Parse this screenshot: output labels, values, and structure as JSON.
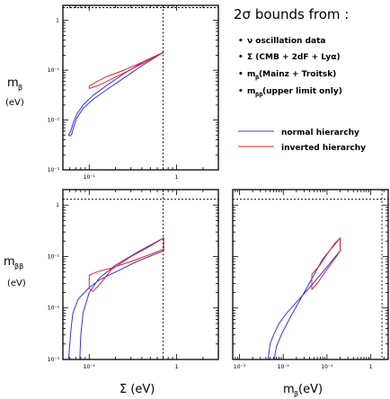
{
  "legend": {
    "title": "2σ bounds from :",
    "bullets": [
      "ν oscillation data",
      "Σ (CMB + 2dF + Lyα)",
      "m_β (Mainz + Troitsk)",
      "m_ββ (upper limit only)"
    ],
    "bullet_parts": [
      {
        "main": "ν oscillation data",
        "sub": ""
      },
      {
        "main": "Σ (CMB + 2dF + Lyα)",
        "sub": ""
      },
      {
        "main": "m",
        "sub": "β",
        "tail": " (Mainz + Troitsk)"
      },
      {
        "main": "m",
        "sub": "ββ",
        "tail": " (upper limit only)"
      }
    ]
  },
  "axis_labels": {
    "y_top": {
      "main": "m",
      "sub": "β",
      "unit": "(eV)"
    },
    "y_bottom": {
      "main": "m",
      "sub": "ββ",
      "unit": "(eV)"
    },
    "x_left": "Σ (eV)",
    "x_right": {
      "main": "m",
      "sub": "β",
      "unit": " (eV)"
    }
  },
  "colors": {
    "normal": "#3333ee",
    "inverted": "#ee2222",
    "frame": "#000000"
  },
  "chart_data": [
    {
      "type": "area",
      "panel": "m_beta vs Sigma",
      "x": {
        "label": "Σ (eV)",
        "scale": "log",
        "lim": [
          0.05,
          3
        ],
        "ticks": [
          0.1,
          1
        ],
        "tick_labels": [
          "10⁻¹",
          "1"
        ]
      },
      "y": {
        "label": "m_β (eV)",
        "scale": "log",
        "lim": [
          0.001,
          2
        ],
        "ticks": [
          0.001,
          0.01,
          0.1,
          1
        ],
        "tick_labels": [
          "10⁻³",
          "10⁻²",
          "10⁻¹",
          "1"
        ]
      },
      "limits": {
        "m_beta_upper": 1.8,
        "sigma_upper": 0.7
      },
      "series": [
        {
          "name": "normal hierarchy",
          "color": "#3333ee",
          "x": [
            0.058,
            0.061,
            0.063,
            0.066,
            0.072,
            0.085,
            0.11,
            0.16,
            0.25,
            0.42,
            0.71,
            0.71,
            0.42,
            0.25,
            0.16,
            0.11,
            0.085,
            0.072,
            0.066,
            0.063,
            0.061,
            0.058
          ],
          "y": [
            0.005,
            0.0048,
            0.0052,
            0.007,
            0.011,
            0.017,
            0.026,
            0.041,
            0.07,
            0.13,
            0.23,
            0.23,
            0.15,
            0.085,
            0.05,
            0.031,
            0.02,
            0.013,
            0.009,
            0.007,
            0.0058,
            0.005
          ]
        },
        {
          "name": "inverted hierarchy",
          "color": "#ee2222",
          "x": [
            0.1,
            0.11,
            0.13,
            0.16,
            0.25,
            0.42,
            0.71,
            0.71,
            0.42,
            0.25,
            0.16,
            0.12,
            0.1
          ],
          "y": [
            0.043,
            0.045,
            0.05,
            0.06,
            0.088,
            0.14,
            0.23,
            0.23,
            0.15,
            0.1,
            0.075,
            0.058,
            0.048
          ]
        }
      ]
    },
    {
      "type": "area",
      "panel": "m_betabeta vs Sigma",
      "x": {
        "label": "Σ (eV)",
        "scale": "log",
        "lim": [
          0.05,
          3
        ],
        "ticks": [
          0.1,
          1
        ],
        "tick_labels": [
          "10⁻¹",
          "1"
        ]
      },
      "y": {
        "label": "m_ββ (eV)",
        "scale": "log",
        "lim": [
          0.001,
          2
        ],
        "ticks": [
          0.001,
          0.01,
          0.1,
          1
        ],
        "tick_labels": [
          "10⁻³",
          "10⁻²",
          "10⁻¹",
          "1"
        ]
      },
      "limits": {
        "m_betabeta_upper": 1.3,
        "sigma_upper": 0.7
      },
      "series": [
        {
          "name": "normal hierarchy",
          "color": "#3333ee",
          "x": [
            0.058,
            0.06,
            0.062,
            0.065,
            0.075,
            0.1,
            0.13,
            0.2,
            0.35,
            0.71,
            0.71,
            0.35,
            0.2,
            0.13,
            0.1,
            0.085,
            0.08,
            0.078
          ],
          "y": [
            0.001,
            0.002,
            0.004,
            0.008,
            0.015,
            0.025,
            0.035,
            0.05,
            0.08,
            0.13,
            0.23,
            0.12,
            0.068,
            0.038,
            0.02,
            0.008,
            0.003,
            0.001
          ]
        },
        {
          "name": "inverted hierarchy",
          "color": "#ee2222",
          "x": [
            0.1,
            0.11,
            0.13,
            0.18,
            0.3,
            0.5,
            0.71,
            0.71,
            0.5,
            0.3,
            0.18,
            0.13,
            0.11,
            0.1
          ],
          "y": [
            0.043,
            0.047,
            0.052,
            0.06,
            0.08,
            0.11,
            0.14,
            0.23,
            0.16,
            0.1,
            0.056,
            0.028,
            0.021,
            0.024
          ]
        }
      ]
    },
    {
      "type": "area",
      "panel": "m_betabeta vs m_beta",
      "x": {
        "label": "m_β (eV)",
        "scale": "log",
        "lim": [
          0.0007,
          2.5
        ],
        "ticks": [
          0.001,
          0.01,
          0.1,
          1
        ],
        "tick_labels": [
          "10⁻³",
          "10⁻²",
          "10⁻¹",
          "1"
        ]
      },
      "y": {
        "label": "m_ββ (eV)",
        "scale": "log",
        "lim": [
          0.001,
          2
        ],
        "ticks": [
          0.001,
          0.01,
          0.1,
          1
        ],
        "tick_labels": [
          "10⁻³",
          "10⁻²",
          "10⁻¹",
          "1"
        ]
      },
      "limits": {
        "m_betabeta_upper": 1.3,
        "m_beta_upper": 1.8
      },
      "series": [
        {
          "name": "normal hierarchy",
          "color": "#3333ee",
          "x": [
            0.0045,
            0.005,
            0.006,
            0.008,
            0.012,
            0.02,
            0.04,
            0.08,
            0.2,
            0.2,
            0.08,
            0.03,
            0.015,
            0.009,
            0.007,
            0.0065,
            0.0063
          ],
          "y": [
            0.001,
            0.002,
            0.003,
            0.005,
            0.008,
            0.013,
            0.025,
            0.05,
            0.13,
            0.23,
            0.09,
            0.02,
            0.007,
            0.003,
            0.0018,
            0.0013,
            0.001
          ]
        },
        {
          "name": "inverted hierarchy",
          "color": "#ee2222",
          "x": [
            0.045,
            0.06,
            0.09,
            0.15,
            0.2,
            0.2,
            0.15,
            0.1,
            0.07,
            0.05,
            0.045
          ],
          "y": [
            0.023,
            0.03,
            0.05,
            0.09,
            0.13,
            0.23,
            0.18,
            0.11,
            0.07,
            0.05,
            0.045
          ]
        }
      ]
    }
  ]
}
